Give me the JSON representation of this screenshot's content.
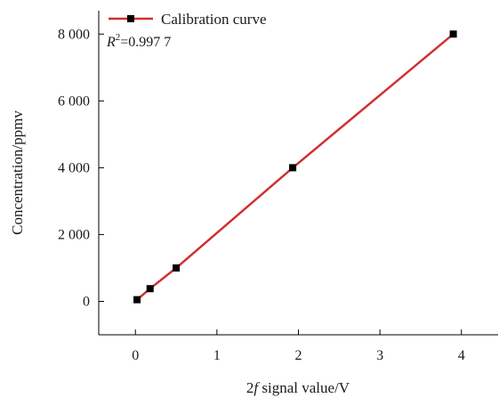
{
  "chart_data": {
    "type": "line",
    "xlabel_parts": [
      "2",
      "f",
      " signal value/V"
    ],
    "ylabel": "Concentration/ppmv",
    "xlim": [
      -0.45,
      4.45
    ],
    "ylim": [
      -1000,
      8700
    ],
    "x_ticks": [
      0,
      1,
      2,
      3,
      4
    ],
    "x_tick_labels": [
      "0",
      "1",
      "2",
      "3",
      "4"
    ],
    "y_ticks": [
      0,
      2000,
      4000,
      6000,
      8000
    ],
    "y_tick_labels": [
      "0",
      "2 000",
      "4 000",
      "6 000",
      "8 000"
    ],
    "legend": "top-left",
    "grid": false,
    "series": [
      {
        "name": "Calibration curve",
        "color": "#d03030",
        "marker_color": "#000000",
        "x": [
          0.02,
          0.18,
          0.5,
          1.93,
          3.9
        ],
        "y": [
          50,
          380,
          1000,
          4000,
          8000
        ]
      }
    ],
    "annotation_parts": [
      "R",
      "2",
      "=0.997 7"
    ]
  }
}
